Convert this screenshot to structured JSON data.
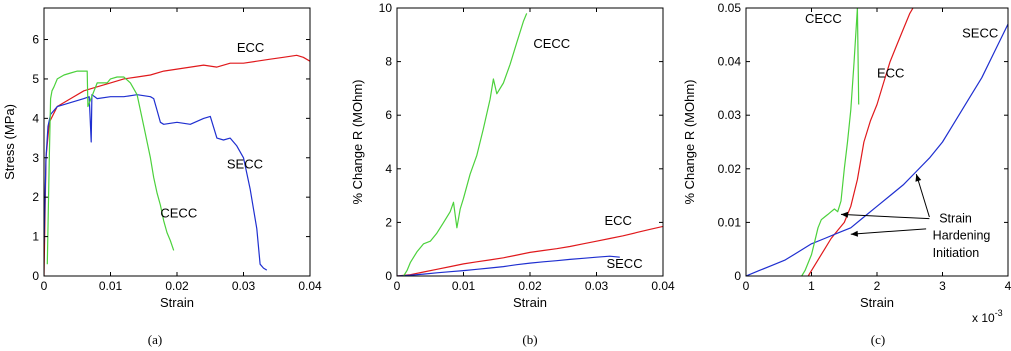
{
  "figure": {
    "captions": [
      "(a)",
      "(b)",
      "(c)"
    ]
  },
  "colors": {
    "ECC": "#e0191c",
    "SECC": "#1f2fd0",
    "CECC": "#4cd13c"
  },
  "chart_data": [
    {
      "type": "line",
      "panel": "(a)",
      "title": "",
      "xlabel": "Strain",
      "ylabel": "Stress (MPa)",
      "xlim": [
        0,
        0.04
      ],
      "ylim": [
        0,
        6.8
      ],
      "xticks": [
        0,
        0.01,
        0.02,
        0.03,
        0.04
      ],
      "yticks": [
        0,
        1,
        2,
        3,
        4,
        5,
        6
      ],
      "xtick_labels": [
        "0",
        "0.01",
        "0.02",
        "0.03",
        "0.04"
      ],
      "ytick_labels": [
        "0",
        "1",
        "2",
        "3",
        "4",
        "5",
        "6"
      ],
      "grid": false,
      "legend": "none",
      "series": [
        {
          "name": "ECC",
          "color": "#e0191c",
          "x": [
            0,
            0.0003,
            0.0008,
            0.002,
            0.004,
            0.006,
            0.008,
            0.01,
            0.012,
            0.014,
            0.016,
            0.018,
            0.02,
            0.022,
            0.024,
            0.026,
            0.028,
            0.03,
            0.032,
            0.034,
            0.036,
            0.038,
            0.039,
            0.04
          ],
          "y": [
            0,
            3.0,
            3.9,
            4.3,
            4.5,
            4.7,
            4.8,
            4.9,
            5.0,
            5.05,
            5.1,
            5.2,
            5.25,
            5.3,
            5.35,
            5.3,
            5.4,
            5.4,
            5.45,
            5.5,
            5.55,
            5.6,
            5.55,
            5.45
          ]
        },
        {
          "name": "SECC",
          "color": "#1f2fd0",
          "x": [
            0,
            0.0003,
            0.0006,
            0.001,
            0.002,
            0.003,
            0.004,
            0.005,
            0.006,
            0.0068,
            0.0071,
            0.0072,
            0.008,
            0.01,
            0.012,
            0.014,
            0.016,
            0.0165,
            0.017,
            0.0175,
            0.018,
            0.02,
            0.022,
            0.024,
            0.025,
            0.026,
            0.027,
            0.028,
            0.029,
            0.03,
            0.031,
            0.032,
            0.0325,
            0.033,
            0.0335
          ],
          "y": [
            0.8,
            3.0,
            3.8,
            4.1,
            4.3,
            4.35,
            4.4,
            4.45,
            4.5,
            4.55,
            3.4,
            4.6,
            4.5,
            4.55,
            4.55,
            4.6,
            4.55,
            4.5,
            4.2,
            3.9,
            3.85,
            3.9,
            3.85,
            4.0,
            4.05,
            3.5,
            3.45,
            3.5,
            3.3,
            3.0,
            2.2,
            1.2,
            0.3,
            0.2,
            0.15
          ]
        },
        {
          "name": "CECC",
          "color": "#4cd13c",
          "x": [
            0.0005,
            0.0008,
            0.001,
            0.0012,
            0.0015,
            0.002,
            0.003,
            0.004,
            0.005,
            0.006,
            0.0065,
            0.0066,
            0.008,
            0.0095,
            0.01,
            0.011,
            0.012,
            0.013,
            0.014,
            0.015,
            0.016,
            0.0165,
            0.017,
            0.0175,
            0.018,
            0.0185,
            0.019,
            0.0195
          ],
          "y": [
            0.3,
            3.0,
            4.5,
            4.7,
            4.8,
            5.0,
            5.1,
            5.15,
            5.2,
            5.2,
            5.2,
            4.3,
            4.9,
            4.9,
            5.0,
            5.05,
            5.05,
            4.9,
            4.6,
            3.8,
            3.0,
            2.5,
            2.1,
            1.8,
            1.4,
            1.1,
            0.9,
            0.65
          ]
        }
      ],
      "annotations": [
        {
          "text": "ECC",
          "x": 0.029,
          "y": 5.68
        },
        {
          "text": "SECC",
          "x": 0.0275,
          "y": 2.73
        },
        {
          "text": "CECC",
          "x": 0.0175,
          "y": 1.48
        }
      ]
    },
    {
      "type": "line",
      "panel": "(b)",
      "title": "",
      "xlabel": "Strain",
      "ylabel": "% Change R (MOhm)",
      "xlim": [
        0,
        0.04
      ],
      "ylim": [
        0,
        10
      ],
      "xticks": [
        0,
        0.01,
        0.02,
        0.03,
        0.04
      ],
      "yticks": [
        0,
        2,
        4,
        6,
        8,
        10
      ],
      "xtick_labels": [
        "0",
        "0.01",
        "0.02",
        "0.03",
        "0.04"
      ],
      "ytick_labels": [
        "0",
        "2",
        "4",
        "6",
        "8",
        "10"
      ],
      "grid": false,
      "legend": "none",
      "series": [
        {
          "name": "ECC",
          "color": "#e0191c",
          "x": [
            0,
            0.002,
            0.004,
            0.006,
            0.008,
            0.01,
            0.012,
            0.014,
            0.016,
            0.018,
            0.02,
            0.022,
            0.024,
            0.026,
            0.028,
            0.03,
            0.032,
            0.034,
            0.036,
            0.038,
            0.04
          ],
          "y": [
            0,
            0.05,
            0.15,
            0.25,
            0.35,
            0.45,
            0.53,
            0.6,
            0.68,
            0.78,
            0.88,
            0.95,
            1.02,
            1.1,
            1.2,
            1.3,
            1.4,
            1.5,
            1.62,
            1.74,
            1.85
          ]
        },
        {
          "name": "SECC",
          "color": "#1f2fd0",
          "x": [
            0,
            0.002,
            0.004,
            0.006,
            0.008,
            0.01,
            0.012,
            0.014,
            0.016,
            0.018,
            0.02,
            0.022,
            0.024,
            0.026,
            0.028,
            0.03,
            0.032,
            0.0335
          ],
          "y": [
            0,
            0.03,
            0.07,
            0.12,
            0.16,
            0.2,
            0.25,
            0.3,
            0.35,
            0.42,
            0.48,
            0.53,
            0.57,
            0.62,
            0.66,
            0.7,
            0.74,
            0.7
          ]
        },
        {
          "name": "CECC",
          "color": "#4cd13c",
          "x": [
            0.001,
            0.0015,
            0.002,
            0.003,
            0.004,
            0.005,
            0.006,
            0.007,
            0.008,
            0.0085,
            0.009,
            0.0095,
            0.01,
            0.011,
            0.012,
            0.013,
            0.014,
            0.0145,
            0.015,
            0.016,
            0.017,
            0.018,
            0.019,
            0.0195
          ],
          "y": [
            0,
            0.2,
            0.5,
            0.9,
            1.2,
            1.3,
            1.6,
            2.0,
            2.4,
            2.75,
            1.8,
            2.5,
            2.9,
            3.8,
            4.5,
            5.5,
            6.6,
            7.35,
            6.8,
            7.2,
            7.9,
            8.7,
            9.5,
            9.8
          ]
        }
      ],
      "annotations": [
        {
          "text": "CECC",
          "x": 0.0205,
          "y": 8.5
        },
        {
          "text": "ECC",
          "x": 0.0312,
          "y": 1.9
        },
        {
          "text": "SECC",
          "x": 0.0315,
          "y": 0.3
        }
      ]
    },
    {
      "type": "line",
      "panel": "(c)",
      "title": "",
      "xlabel": "Strain",
      "ylabel": "% Change R (MOhm)",
      "xlim": [
        0,
        4
      ],
      "ylim": [
        0,
        0.05
      ],
      "xticks": [
        0,
        1,
        2,
        3,
        4
      ],
      "yticks": [
        0,
        0.01,
        0.02,
        0.03,
        0.04,
        0.05
      ],
      "xtick_labels": [
        "0",
        "1",
        "2",
        "3",
        "4"
      ],
      "ytick_labels": [
        "0",
        "0.01",
        "0.02",
        "0.03",
        "0.04",
        "0.05"
      ],
      "x_multiplier": "x 10",
      "x_multiplier_exponent": "-3",
      "grid": false,
      "legend": "none",
      "series": [
        {
          "name": "ECC",
          "color": "#e0191c",
          "x": [
            0.95,
            1.0,
            1.1,
            1.2,
            1.3,
            1.4,
            1.5,
            1.6,
            1.7,
            1.8,
            1.9,
            2.0,
            2.1,
            2.2,
            2.3,
            2.4,
            2.5,
            2.55
          ],
          "y": [
            0,
            0.001,
            0.003,
            0.005,
            0.007,
            0.0085,
            0.01,
            0.013,
            0.018,
            0.025,
            0.029,
            0.032,
            0.036,
            0.04,
            0.043,
            0.046,
            0.049,
            0.05
          ]
        },
        {
          "name": "SECC",
          "color": "#1f2fd0",
          "x": [
            0,
            0.2,
            0.4,
            0.6,
            0.8,
            1.0,
            1.2,
            1.4,
            1.6,
            1.8,
            2.0,
            2.2,
            2.4,
            2.6,
            2.8,
            3.0,
            3.2,
            3.4,
            3.6,
            3.8,
            4.0
          ],
          "y": [
            0,
            0.001,
            0.002,
            0.003,
            0.0045,
            0.006,
            0.007,
            0.008,
            0.009,
            0.011,
            0.013,
            0.015,
            0.017,
            0.0195,
            0.022,
            0.025,
            0.029,
            0.033,
            0.037,
            0.042,
            0.047
          ]
        },
        {
          "name": "CECC",
          "color": "#4cd13c",
          "x": [
            0.85,
            0.9,
            1.0,
            1.05,
            1.1,
            1.15,
            1.2,
            1.25,
            1.3,
            1.35,
            1.4,
            1.45,
            1.5,
            1.55,
            1.6,
            1.65,
            1.7,
            1.72
          ],
          "y": [
            0,
            0.001,
            0.004,
            0.0065,
            0.009,
            0.0105,
            0.011,
            0.0115,
            0.012,
            0.0125,
            0.012,
            0.014,
            0.02,
            0.025,
            0.031,
            0.04,
            0.05,
            0.032
          ]
        }
      ],
      "annotations": [
        {
          "text": "CECC",
          "x": 0.9,
          "y": 0.0472
        },
        {
          "text": "ECC",
          "x": 2.0,
          "y": 0.037
        },
        {
          "text": "SECC",
          "x": 3.3,
          "y": 0.0445
        },
        {
          "text": "Strain",
          "x": 2.95,
          "y": 0.01
        },
        {
          "text": "Hardening",
          "x": 2.85,
          "y": 0.0068
        },
        {
          "text": "Initiation",
          "x": 2.85,
          "y": 0.0035
        }
      ],
      "arrows": [
        {
          "from": [
            2.8,
            0.0107
          ],
          "to": [
            1.45,
            0.0115
          ]
        },
        {
          "from": [
            2.75,
            0.0088
          ],
          "to": [
            1.6,
            0.0078
          ]
        },
        {
          "from": [
            2.8,
            0.011
          ],
          "to": [
            2.6,
            0.019
          ]
        }
      ]
    }
  ]
}
